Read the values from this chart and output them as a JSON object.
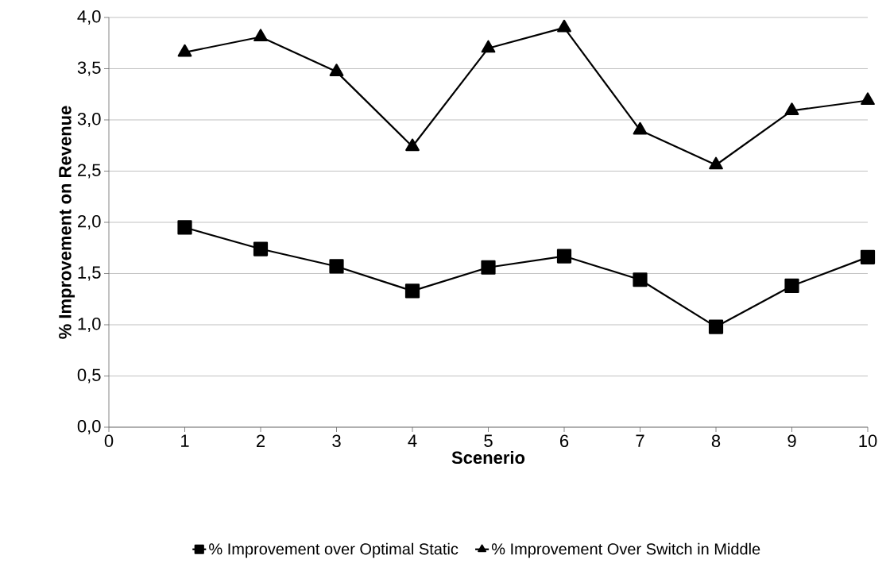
{
  "chart_data": {
    "type": "line",
    "xlabel": "Scenerio",
    "ylabel": "% Improvement on Revenue",
    "x": [
      1,
      2,
      3,
      4,
      5,
      6,
      7,
      8,
      9,
      10
    ],
    "series": [
      {
        "name": "% Improvement over Optimal Static",
        "color": "#000000",
        "marker": "square",
        "values": [
          1.95,
          1.74,
          1.57,
          1.33,
          1.56,
          1.67,
          1.44,
          0.98,
          1.38,
          1.66
        ]
      },
      {
        "name": "% Improvement Over Switch in Middle",
        "color": "#000000",
        "marker": "triangle",
        "values": [
          3.66,
          3.81,
          3.47,
          2.74,
          3.7,
          3.9,
          2.9,
          2.56,
          3.09,
          3.19
        ]
      }
    ],
    "xlim": [
      0,
      10
    ],
    "xticks": [
      0,
      1,
      2,
      3,
      4,
      5,
      6,
      7,
      8,
      9,
      10
    ],
    "ylim": [
      0,
      4
    ],
    "yticks": [
      {
        "value": 0,
        "label": "0,0"
      },
      {
        "value": 0.5,
        "label": "0,5"
      },
      {
        "value": 1,
        "label": "1,0"
      },
      {
        "value": 1.5,
        "label": "1,5"
      },
      {
        "value": 2,
        "label": "2,0"
      },
      {
        "value": 2.5,
        "label": "2,5"
      },
      {
        "value": 3,
        "label": "3,0"
      },
      {
        "value": 3.5,
        "label": "3,5"
      },
      {
        "value": 4,
        "label": "4,0"
      }
    ],
    "grid": "y",
    "legend": "bottom",
    "line_style": "solid"
  }
}
